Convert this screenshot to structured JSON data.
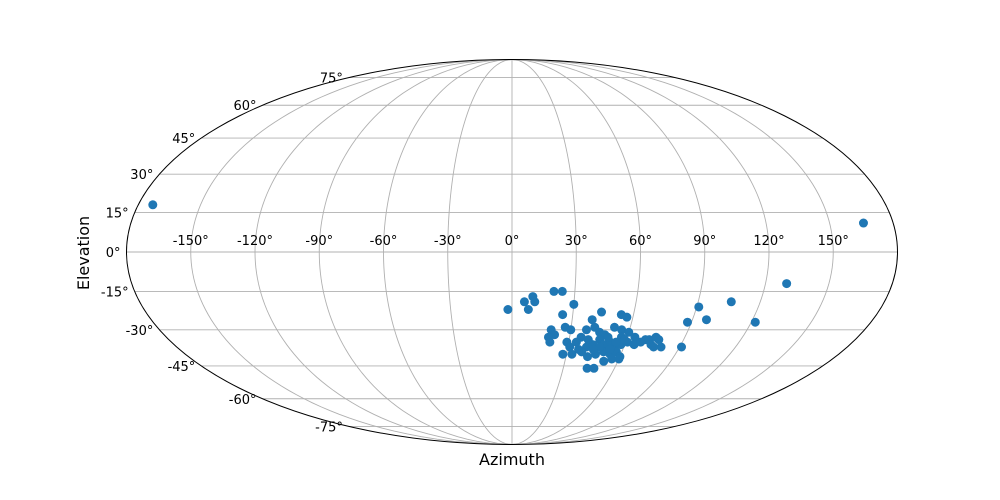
{
  "chart_data": {
    "type": "scatter",
    "projection": "mollweide",
    "title": "",
    "xlabel": "Azimuth",
    "ylabel": "Elevation",
    "xlim": [
      -180,
      180
    ],
    "ylim": [
      -90,
      90
    ],
    "grid": true,
    "x_ticks": [
      -150,
      -120,
      -90,
      -60,
      -30,
      0,
      30,
      60,
      90,
      120,
      150
    ],
    "x_tick_labels": [
      "-150°",
      "-120°",
      "-90°",
      "-60°",
      "-30°",
      "0°",
      "30°",
      "60°",
      "90°",
      "120°",
      "150°"
    ],
    "y_ticks": [
      -75,
      -60,
      -45,
      -30,
      -15,
      0,
      15,
      30,
      45,
      60,
      75
    ],
    "y_tick_labels": [
      "-75°",
      "-60°",
      "-45°",
      "-30°",
      "-15°",
      "0°",
      "15°",
      "30°",
      "45°",
      "60°",
      "75°"
    ],
    "marker_color": "#1f77b4",
    "grid_color": "#b0b0b0",
    "series": [
      {
        "points": [
          [
            -173,
            18
          ],
          [
            166,
            11
          ],
          [
            130,
            -12
          ],
          [
            106,
            -19
          ],
          [
            122,
            -27
          ],
          [
            97,
            -26
          ],
          [
            91,
            -21
          ],
          [
            88,
            -27
          ],
          [
            91,
            -37
          ],
          [
            80,
            -37
          ],
          [
            -2,
            -22
          ],
          [
            6,
            -19
          ],
          [
            8,
            -22
          ],
          [
            10,
            -17
          ],
          [
            11,
            -19
          ],
          [
            20,
            -15
          ],
          [
            24,
            -15
          ],
          [
            30,
            -20
          ],
          [
            25,
            -24
          ],
          [
            40,
            -26
          ],
          [
            44,
            -23
          ],
          [
            54,
            -24
          ],
          [
            57,
            -25
          ],
          [
            20,
            -30
          ],
          [
            22,
            -32
          ],
          [
            27,
            -29
          ],
          [
            30,
            -30
          ],
          [
            19,
            -33
          ],
          [
            20,
            -35
          ],
          [
            36,
            -33
          ],
          [
            38,
            -30
          ],
          [
            42,
            -29
          ],
          [
            45,
            -31
          ],
          [
            48,
            -32
          ],
          [
            52,
            -29
          ],
          [
            56,
            -30
          ],
          [
            60,
            -31
          ],
          [
            64,
            -33
          ],
          [
            70,
            -34
          ],
          [
            72,
            -34
          ],
          [
            75,
            -33
          ],
          [
            77,
            -34
          ],
          [
            29,
            -35
          ],
          [
            31,
            -37
          ],
          [
            34,
            -35
          ],
          [
            40,
            -37
          ],
          [
            43,
            -36
          ],
          [
            46,
            -34
          ],
          [
            49,
            -36
          ],
          [
            52,
            -35
          ],
          [
            55,
            -37
          ],
          [
            58,
            -36
          ],
          [
            61,
            -35
          ],
          [
            65,
            -36
          ],
          [
            68,
            -35
          ],
          [
            74,
            -36
          ],
          [
            76,
            -37
          ],
          [
            28,
            -40
          ],
          [
            33,
            -40
          ],
          [
            38,
            -39
          ],
          [
            42,
            -41
          ],
          [
            46,
            -40
          ],
          [
            50,
            -39
          ],
          [
            54,
            -40
          ],
          [
            57,
            -39
          ],
          [
            60,
            -41
          ],
          [
            44,
            -46
          ],
          [
            48,
            -46
          ],
          [
            52,
            -43
          ],
          [
            56,
            -42
          ],
          [
            60,
            -42
          ],
          [
            40,
            -34
          ],
          [
            47,
            -37
          ],
          [
            53,
            -38
          ],
          [
            57,
            -33
          ],
          [
            59,
            -34
          ],
          [
            50,
            -33
          ],
          [
            44,
            -38
          ],
          [
            36,
            -38
          ],
          [
            55,
            -35
          ]
        ]
      }
    ]
  }
}
